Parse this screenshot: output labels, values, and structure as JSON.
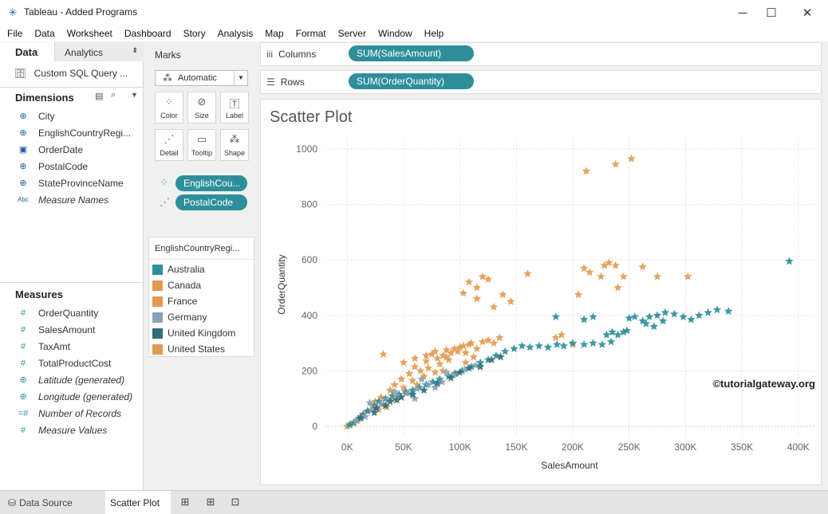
{
  "window": {
    "title": "Tableau - Added Programs",
    "minimize_glyph": "─",
    "maximize_glyph": "☐",
    "close_glyph": "✕"
  },
  "menu": [
    "File",
    "Data",
    "Worksheet",
    "Dashboard",
    "Story",
    "Analysis",
    "Map",
    "Format",
    "Server",
    "Window",
    "Help"
  ],
  "left_pane": {
    "tab_data": "Data",
    "tab_analytics": "Analytics",
    "data_source": "Custom SQL Query ...",
    "dimensions_label": "Dimensions",
    "dimensions": [
      {
        "label": "City",
        "icon": "globe-icon",
        "glyph": "⊕",
        "italic": false
      },
      {
        "label": "EnglishCountryRegi...",
        "icon": "globe-icon",
        "glyph": "⊕",
        "italic": false
      },
      {
        "label": "OrderDate",
        "icon": "calendar-icon",
        "glyph": "▣",
        "italic": false
      },
      {
        "label": "PostalCode",
        "icon": "globe-icon",
        "glyph": "⊕",
        "italic": false
      },
      {
        "label": "StateProvinceName",
        "icon": "globe-icon",
        "glyph": "⊕",
        "italic": false
      },
      {
        "label": "Measure Names",
        "icon": "abc-icon",
        "glyph": "Abc",
        "italic": true
      }
    ],
    "measures_label": "Measures",
    "measures": [
      {
        "label": "OrderQuantity",
        "icon": "hash-icon",
        "glyph": "#",
        "italic": false
      },
      {
        "label": "SalesAmount",
        "icon": "hash-icon",
        "glyph": "#",
        "italic": false
      },
      {
        "label": "TaxAmt",
        "icon": "hash-icon",
        "glyph": "#",
        "italic": false
      },
      {
        "label": "TotalProductCost",
        "icon": "hash-icon",
        "glyph": "#",
        "italic": false
      },
      {
        "label": "Latitude (generated)",
        "icon": "globe-icon",
        "glyph": "⊕",
        "italic": true
      },
      {
        "label": "Longitude (generated)",
        "icon": "globe-icon",
        "glyph": "⊕",
        "italic": true
      },
      {
        "label": "Number of Records",
        "icon": "hash-icon",
        "glyph": "=#",
        "italic": true
      },
      {
        "label": "Measure Values",
        "icon": "hash-icon",
        "glyph": "#",
        "italic": true
      }
    ]
  },
  "marks": {
    "title": "Marks",
    "mark_type": "Automatic",
    "buttons": [
      "Color",
      "Size",
      "Label",
      "Detail",
      "Tooltip",
      "Shape"
    ],
    "pills": [
      "EnglishCou...",
      "PostalCode"
    ]
  },
  "legend": {
    "title": "EnglishCountryRegi...",
    "items": [
      {
        "label": "Australia",
        "color": "#2e8f9a"
      },
      {
        "label": "Canada",
        "color": "#e39a50"
      },
      {
        "label": "France",
        "color": "#e39a50"
      },
      {
        "label": "Germany",
        "color": "#86a4b6"
      },
      {
        "label": "United Kingdom",
        "color": "#2f6f7a"
      },
      {
        "label": "United States",
        "color": "#e39a50"
      }
    ]
  },
  "shelves": {
    "columns_label": "Columns",
    "columns_pill": "SUM(SalesAmount)",
    "rows_label": "Rows",
    "rows_pill": "SUM(OrderQuantity)"
  },
  "sheet_title": "Scatter Plot",
  "watermark": "©tutorialgateway.org",
  "chart_data": {
    "type": "scatter",
    "title": "Scatter Plot",
    "xlabel": "SalesAmount",
    "ylabel": "OrderQuantity",
    "xlim": [
      -20000,
      415000
    ],
    "ylim": [
      -40,
      1040
    ],
    "x_ticks": [
      "0K",
      "50K",
      "100K",
      "150K",
      "200K",
      "250K",
      "300K",
      "350K",
      "400K"
    ],
    "y_ticks": [
      "0",
      "200",
      "400",
      "600",
      "800",
      "1000"
    ],
    "x_tick_values": [
      0,
      50000,
      100000,
      150000,
      200000,
      250000,
      300000,
      350000,
      400000
    ],
    "y_tick_values": [
      0,
      200,
      400,
      600,
      800,
      1000
    ],
    "marker": "star",
    "grid": true,
    "series": [
      {
        "color": "#e39a50",
        "points": [
          [
            0,
            0
          ],
          [
            3000,
            8
          ],
          [
            6000,
            15
          ],
          [
            9000,
            22
          ],
          [
            12000,
            35
          ],
          [
            15000,
            45
          ],
          [
            18000,
            55
          ],
          [
            22000,
            75
          ],
          [
            25000,
            90
          ],
          [
            28000,
            60
          ],
          [
            30000,
            105
          ],
          [
            32000,
            80
          ],
          [
            35000,
            70
          ],
          [
            38000,
            130
          ],
          [
            40000,
            95
          ],
          [
            42000,
            150
          ],
          [
            45000,
            110
          ],
          [
            48000,
            170
          ],
          [
            50000,
            140
          ],
          [
            52000,
            120
          ],
          [
            55000,
            190
          ],
          [
            58000,
            165
          ],
          [
            60000,
            215
          ],
          [
            62000,
            150
          ],
          [
            65000,
            200
          ],
          [
            68000,
            180
          ],
          [
            70000,
            235
          ],
          [
            72000,
            210
          ],
          [
            75000,
            260
          ],
          [
            78000,
            195
          ],
          [
            80000,
            245
          ],
          [
            82000,
            225
          ],
          [
            85000,
            255
          ],
          [
            88000,
            275
          ],
          [
            90000,
            240
          ],
          [
            92000,
            265
          ],
          [
            95000,
            280
          ],
          [
            98000,
            270
          ],
          [
            100000,
            285
          ],
          [
            103000,
            290
          ],
          [
            105000,
            265
          ],
          [
            108000,
            295
          ],
          [
            110000,
            300
          ],
          [
            115000,
            280
          ],
          [
            120000,
            305
          ],
          [
            125000,
            310
          ],
          [
            130000,
            300
          ],
          [
            135000,
            320
          ],
          [
            32000,
            260
          ],
          [
            50000,
            230
          ],
          [
            60000,
            245
          ],
          [
            70000,
            255
          ],
          [
            85000,
            200
          ],
          [
            95000,
            190
          ],
          [
            105000,
            230
          ],
          [
            112000,
            250
          ],
          [
            78000,
            270
          ],
          [
            88000,
            250
          ],
          [
            103000,
            480
          ],
          [
            108000,
            520
          ],
          [
            115000,
            500
          ],
          [
            125000,
            530
          ],
          [
            130000,
            430
          ],
          [
            138000,
            475
          ],
          [
            145000,
            450
          ],
          [
            160000,
            550
          ],
          [
            115000,
            460
          ],
          [
            120000,
            540
          ],
          [
            185000,
            320
          ],
          [
            190000,
            330
          ],
          [
            200000,
            295
          ],
          [
            205000,
            475
          ],
          [
            210000,
            570
          ],
          [
            215000,
            555
          ],
          [
            225000,
            540
          ],
          [
            228000,
            580
          ],
          [
            232000,
            590
          ],
          [
            238000,
            580
          ],
          [
            240000,
            500
          ],
          [
            245000,
            540
          ],
          [
            262000,
            575
          ],
          [
            275000,
            540
          ],
          [
            302000,
            540
          ],
          [
            212000,
            920
          ],
          [
            238000,
            945
          ],
          [
            252000,
            965
          ]
        ]
      },
      {
        "color": "#2e8f9a",
        "points": [
          [
            2000,
            5
          ],
          [
            6000,
            12
          ],
          [
            10000,
            28
          ],
          [
            14000,
            42
          ],
          [
            18000,
            55
          ],
          [
            24000,
            75
          ],
          [
            28000,
            90
          ],
          [
            34000,
            100
          ],
          [
            40000,
            110
          ],
          [
            46000,
            115
          ],
          [
            52000,
            125
          ],
          [
            58000,
            130
          ],
          [
            64000,
            140
          ],
          [
            70000,
            150
          ],
          [
            76000,
            160
          ],
          [
            82000,
            170
          ],
          [
            90000,
            180
          ],
          [
            96000,
            190
          ],
          [
            102000,
            200
          ],
          [
            110000,
            215
          ],
          [
            118000,
            230
          ],
          [
            125000,
            240
          ],
          [
            132000,
            255
          ],
          [
            140000,
            270
          ],
          [
            148000,
            280
          ],
          [
            155000,
            290
          ],
          [
            162000,
            285
          ],
          [
            170000,
            290
          ],
          [
            178000,
            285
          ],
          [
            186000,
            295
          ],
          [
            192000,
            290
          ],
          [
            200000,
            300
          ],
          [
            210000,
            295
          ],
          [
            218000,
            300
          ],
          [
            226000,
            295
          ],
          [
            234000,
            305
          ],
          [
            240000,
            330
          ],
          [
            245000,
            340
          ],
          [
            250000,
            390
          ],
          [
            255000,
            395
          ],
          [
            262000,
            380
          ],
          [
            268000,
            395
          ],
          [
            275000,
            400
          ],
          [
            282000,
            410
          ],
          [
            290000,
            405
          ],
          [
            298000,
            395
          ],
          [
            305000,
            385
          ],
          [
            312000,
            400
          ],
          [
            320000,
            410
          ],
          [
            328000,
            420
          ],
          [
            338000,
            415
          ],
          [
            265000,
            370
          ],
          [
            272000,
            360
          ],
          [
            280000,
            380
          ],
          [
            230000,
            330
          ],
          [
            210000,
            385
          ],
          [
            185000,
            395
          ],
          [
            235000,
            340
          ],
          [
            248000,
            345
          ],
          [
            218000,
            395
          ],
          [
            392000,
            595
          ]
        ]
      },
      {
        "color": "#86a4b6",
        "points": [
          [
            8000,
            20
          ],
          [
            16000,
            35
          ],
          [
            22000,
            60
          ],
          [
            30000,
            80
          ],
          [
            36000,
            95
          ],
          [
            44000,
            110
          ],
          [
            54000,
            120
          ],
          [
            62000,
            135
          ],
          [
            72000,
            150
          ],
          [
            84000,
            160
          ],
          [
            94000,
            185
          ],
          [
            104000,
            205
          ],
          [
            114000,
            220
          ],
          [
            20000,
            85
          ],
          [
            26000,
            70
          ],
          [
            42000,
            125
          ],
          [
            60000,
            100
          ],
          [
            66000,
            170
          ],
          [
            78000,
            140
          ],
          [
            88000,
            195
          ]
        ]
      },
      {
        "color": "#2f6f7a",
        "points": [
          [
            12000,
            30
          ],
          [
            26000,
            65
          ],
          [
            38000,
            90
          ],
          [
            48000,
            105
          ],
          [
            58000,
            115
          ],
          [
            68000,
            130
          ],
          [
            80000,
            155
          ],
          [
            92000,
            175
          ],
          [
            100000,
            195
          ],
          [
            108000,
            210
          ],
          [
            118000,
            215
          ],
          [
            128000,
            240
          ],
          [
            136000,
            250
          ],
          [
            24000,
            50
          ],
          [
            34000,
            75
          ],
          [
            44000,
            95
          ]
        ]
      }
    ]
  }
}
